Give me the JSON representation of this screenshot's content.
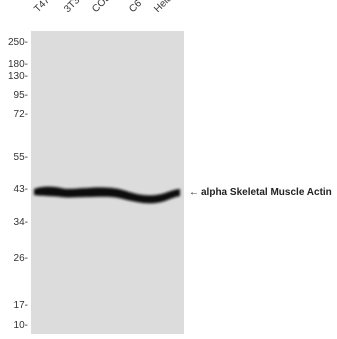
{
  "lanes": [
    "T47D",
    "3T3",
    "COS7",
    "C6",
    "Hela"
  ],
  "markers": [
    {
      "label": "250-",
      "value": 250
    },
    {
      "label": "180-",
      "value": 180
    },
    {
      "label": "130-",
      "value": 130
    },
    {
      "label": "95-",
      "value": 95
    },
    {
      "label": "72-",
      "value": 72
    },
    {
      "label": "55-",
      "value": 55
    },
    {
      "label": "43-",
      "value": 43
    },
    {
      "label": "34-",
      "value": 34
    },
    {
      "label": "26-",
      "value": 26
    },
    {
      "label": "17-",
      "value": 17
    },
    {
      "label": "10-",
      "value": 10
    }
  ],
  "band": {
    "arrow": "←",
    "label": "alpha Skeletal Muscle Actin",
    "color": "#111111"
  },
  "colors": {
    "membrane": "#dcdcdc",
    "band": "#111111"
  }
}
